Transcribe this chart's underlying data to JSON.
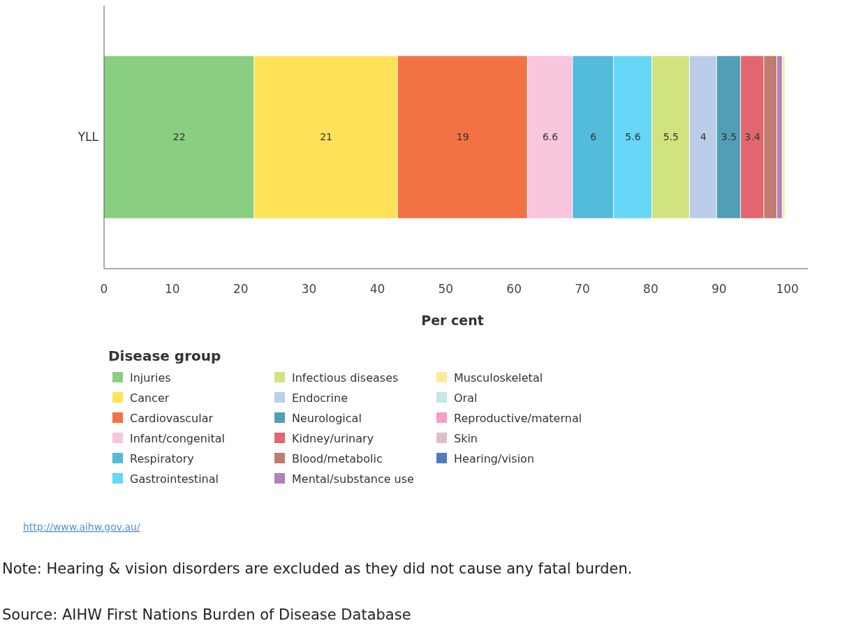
{
  "chart_data": {
    "type": "bar",
    "orientation": "horizontal",
    "stacked": true,
    "categories": [
      "YLL"
    ],
    "xlabel": "Per cent",
    "legend_title": "Disease group",
    "legend": "bottom",
    "xlim": [
      0,
      103
    ],
    "xticks": [
      0,
      10,
      20,
      30,
      40,
      50,
      60,
      70,
      80,
      90,
      100
    ],
    "grid": false,
    "series": [
      {
        "name": "Injuries",
        "color": "#8acf81",
        "values": [
          22
        ],
        "value_labels": [
          "22"
        ]
      },
      {
        "name": "Cancer",
        "color": "#ffe258",
        "values": [
          21
        ],
        "value_labels": [
          "21"
        ]
      },
      {
        "name": "Cardiovascular",
        "color": "#f37245",
        "values": [
          19
        ],
        "value_labels": [
          "19"
        ]
      },
      {
        "name": "Infant/congenital",
        "color": "#f8c6dd",
        "values": [
          6.6
        ],
        "value_labels": [
          "6.6"
        ]
      },
      {
        "name": "Respiratory",
        "color": "#53bcdc",
        "values": [
          6
        ],
        "value_labels": [
          "6"
        ]
      },
      {
        "name": "Gastrointestinal",
        "color": "#66d7f6",
        "values": [
          5.6
        ],
        "value_labels": [
          "5.6"
        ]
      },
      {
        "name": "Infectious diseases",
        "color": "#d0e37f",
        "values": [
          5.5
        ],
        "value_labels": [
          "5.5"
        ]
      },
      {
        "name": "Endocrine",
        "color": "#bccde9",
        "values": [
          4
        ],
        "value_labels": [
          "4"
        ]
      },
      {
        "name": "Neurological",
        "color": "#519fb7",
        "values": [
          3.5
        ],
        "value_labels": [
          "3.5"
        ]
      },
      {
        "name": "Kidney/urinary",
        "color": "#e1666f",
        "values": [
          3.4
        ],
        "value_labels": [
          "3.4"
        ]
      },
      {
        "name": "Blood/metabolic",
        "color": "#c07c6c",
        "values": [
          1.9
        ],
        "value_labels": [
          null
        ]
      },
      {
        "name": "Mental/substance use",
        "color": "#b083b6",
        "values": [
          0.8
        ],
        "value_labels": [
          null
        ]
      },
      {
        "name": "Musculoskeletal",
        "color": "#ffe99a",
        "values": [
          0.4
        ],
        "value_labels": [
          null
        ]
      },
      {
        "name": "Oral",
        "color": "#c6e6e3",
        "values": [
          0.1
        ],
        "value_labels": [
          null
        ]
      },
      {
        "name": "Reproductive/maternal",
        "color": "#f49fc8",
        "values": [
          0.1
        ],
        "value_labels": [
          null
        ]
      },
      {
        "name": "Skin",
        "color": "#e0bccb",
        "values": [
          0.1
        ],
        "value_labels": [
          null
        ]
      },
      {
        "name": "Hearing/vision",
        "color": "#5079c2",
        "values": [
          null
        ],
        "value_labels": [
          null
        ]
      }
    ],
    "annotations": [
      "http://www.aihw.gov.au/",
      "Note: Hearing & vision disorders are excluded as they did not cause any fatal burden.",
      "Source: AIHW First Nations Burden of Disease Database"
    ]
  }
}
